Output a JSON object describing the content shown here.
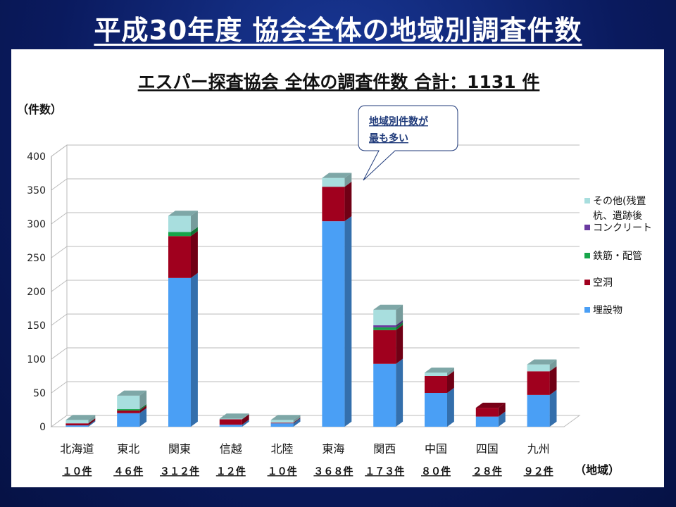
{
  "slide": {
    "title": "平成30年度 協会全体の地域別調査件数"
  },
  "chart_data": {
    "type": "bar",
    "stacked": true,
    "title": "エスパー探査協会 全体の調査件数 合計：1131 件",
    "ylabel": "（件数）",
    "xlabel": "（地域）",
    "ylim": [
      0,
      400
    ],
    "yticks": [
      0,
      50,
      100,
      150,
      200,
      250,
      300,
      350,
      400
    ],
    "categories": [
      "北海道",
      "東北",
      "関東",
      "信越",
      "北陸",
      "東海",
      "関西",
      "中国",
      "四国",
      "九州"
    ],
    "totals_labels": [
      "１０件",
      "４６件",
      "３１２件",
      "１２件",
      "１０件",
      "３６８件",
      "１７３件",
      "８０件",
      "２８件",
      "９２件"
    ],
    "series": [
      {
        "name": "埋設物",
        "color": "#4a9ff5",
        "values": [
          2,
          20,
          220,
          3,
          5,
          304,
          93,
          50,
          15,
          47
        ]
      },
      {
        "name": "空洞",
        "color": "#a0001e",
        "values": [
          3,
          4,
          62,
          8,
          1,
          51,
          50,
          25,
          13,
          35
        ]
      },
      {
        "name": "鉄筋・配管",
        "color": "#17a54a",
        "values": [
          0,
          2,
          6,
          0,
          0,
          0,
          4,
          0,
          0,
          0
        ]
      },
      {
        "name": "コンクリート",
        "color": "#6a3aa0",
        "values": [
          0,
          0,
          0,
          0,
          0,
          0,
          3,
          0,
          0,
          0
        ]
      },
      {
        "name": "その他(残置杭、遺跡後",
        "color": "#a8dede",
        "values": [
          5,
          20,
          24,
          1,
          4,
          13,
          23,
          5,
          0,
          10
        ]
      }
    ],
    "legend": {
      "position": "right",
      "entries": [
        "その他(残置",
        "杭、遺跡後",
        "コンクリート",
        "鉄筋・配管",
        "空洞",
        "埋設物"
      ]
    },
    "annotation": {
      "line1": "地域別件数が",
      "line2": "最も多い"
    },
    "grid": true
  }
}
